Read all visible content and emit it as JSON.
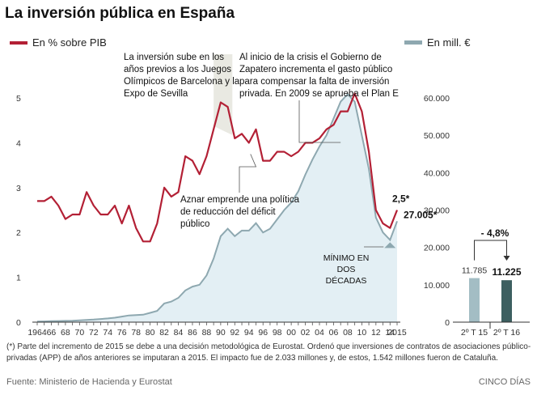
{
  "title": "La inversión pública en España",
  "legend": {
    "left": "En % sobre PIB",
    "right": "En mill. €"
  },
  "annotations": {
    "olympics": "La inversión sube en los años previos a los Juegos Olímpicos de Barcelona y la Expo de Sevilla",
    "crisis": "Al inicio de la crisis el Gobierno de Zapatero incrementa el gasto público para compensar la falta de inversión privada. En 2009 se aprueba el Plan E",
    "aznar": "Aznar emprende una política de reducción del déficit público",
    "minimum": "MÍNIMO EN DOS DÉCADAS"
  },
  "footnote": "(*) Parte del incremento de 2015 se debe a una decisión metodológica de Eurostat. Ordenó que inversiones de contratos de asociaciones público-privadas (APP) de años anteriores se imputaran a 2015. El impacto fue de 2.033 millones y, de estos, 1.542 millones fueron de Cataluña.",
  "source": "Fuente: Ministerio de Hacienda y Eurostat",
  "brand": "CINCO DÍAS",
  "colors": {
    "pib_line": "#b32035",
    "eur_area_fill": "#e3eff4",
    "eur_line": "#8ea8b0",
    "bar1": "#a3bdc4",
    "bar2": "#3d5f60"
  },
  "chart_data": [
    {
      "type": "line",
      "title": "La inversión pública en España",
      "x": [
        1964,
        1965,
        1966,
        1967,
        1968,
        1969,
        1970,
        1971,
        1972,
        1973,
        1974,
        1975,
        1976,
        1977,
        1978,
        1979,
        1980,
        1981,
        1982,
        1983,
        1984,
        1985,
        1986,
        1987,
        1988,
        1989,
        1990,
        1991,
        1992,
        1993,
        1994,
        1995,
        1996,
        1997,
        1998,
        1999,
        2000,
        2001,
        2002,
        2003,
        2004,
        2005,
        2006,
        2007,
        2008,
        2009,
        2010,
        2011,
        2012,
        2013,
        2014,
        2015
      ],
      "x_tick_labels": [
        "1964",
        "66",
        "68",
        "70",
        "72",
        "74",
        "76",
        "78",
        "80",
        "82",
        "84",
        "86",
        "88",
        "90",
        "92",
        "94",
        "96",
        "98",
        "00",
        "02",
        "04",
        "06",
        "08",
        "10",
        "12",
        "14",
        "2015"
      ],
      "series": [
        {
          "name": "En % sobre PIB",
          "axis": "left",
          "values": [
            2.7,
            2.7,
            2.8,
            2.6,
            2.3,
            2.4,
            2.4,
            2.9,
            2.6,
            2.4,
            2.4,
            2.6,
            2.2,
            2.6,
            2.1,
            1.8,
            1.8,
            2.2,
            3.0,
            2.8,
            2.9,
            3.7,
            3.6,
            3.3,
            3.7,
            4.3,
            4.9,
            4.8,
            4.1,
            4.2,
            4.0,
            4.3,
            3.6,
            3.6,
            3.8,
            3.8,
            3.7,
            3.8,
            4.0,
            4.0,
            4.1,
            4.3,
            4.4,
            4.7,
            4.7,
            5.1,
            4.7,
            3.8,
            2.5,
            2.2,
            2.1,
            2.5
          ]
        },
        {
          "name": "En mill. €",
          "axis": "right",
          "values": [
            150,
            200,
            250,
            300,
            350,
            400,
            500,
            600,
            700,
            850,
            1000,
            1200,
            1500,
            1800,
            1900,
            2000,
            2500,
            3000,
            5000,
            5500,
            6500,
            8500,
            9500,
            10000,
            12500,
            17000,
            23000,
            25000,
            23000,
            24500,
            24500,
            26500,
            24000,
            25000,
            27500,
            30000,
            32000,
            35000,
            39500,
            43500,
            47000,
            50000,
            54500,
            59000,
            61000,
            59000,
            50000,
            41000,
            28000,
            24000,
            22000,
            27005
          ]
        }
      ],
      "ylim_left": [
        0,
        5
      ],
      "yticks_left": [
        "0",
        "1",
        "2",
        "3",
        "4",
        "5"
      ],
      "ylim_right": [
        0,
        60000
      ],
      "yticks_right": [
        "0",
        "10.000",
        "20.000",
        "30.000",
        "40.000",
        "50.000",
        "60.000"
      ],
      "labels": {
        "pib_2015": "2,5*",
        "eur_2015": "27.005*"
      }
    },
    {
      "type": "bar",
      "categories": [
        "2º T 15",
        "2º T 16"
      ],
      "values": [
        11785,
        11225
      ],
      "value_labels": [
        "11.785",
        "11.225"
      ],
      "change_label": "- 4,8%"
    }
  ]
}
